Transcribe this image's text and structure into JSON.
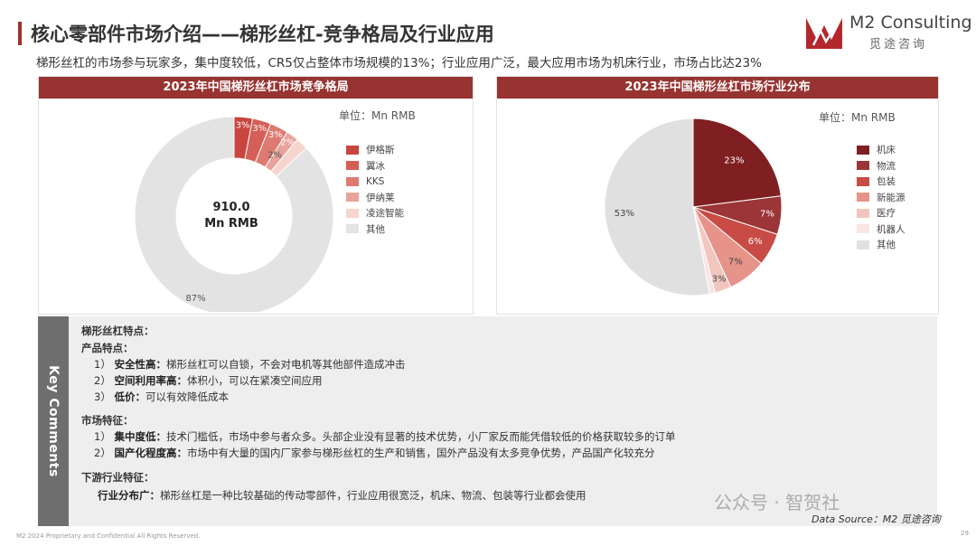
{
  "header": {
    "title": "核心零部件市场介绍——梯形丝杠-竞争格局及行业应用",
    "subtitle": "梯形丝杠的市场参与玩家多，集中度较低，CR5仅占整体市场规模的13%；行业应用广泛，最大应用市场为机床行业，市场占比达23%"
  },
  "logo": {
    "name": "M2 Consulting",
    "sub": "觅途咨询"
  },
  "colors": {
    "accent": "#973330",
    "slices": [
      "#7f1f22",
      "#a13a3a",
      "#c9534c",
      "#e79c92",
      "#f3cdc7",
      "#fbeae7",
      "#e0e0e0"
    ]
  },
  "chart_data": [
    {
      "type": "donut",
      "title": "2023年中国梯形丝杠市场竞争格局",
      "unit_label": "单位：Mn RMB",
      "center_value": "910.0",
      "center_unit": "Mn RMB",
      "series": [
        {
          "name": "伊格斯",
          "value": 3,
          "label": "3%"
        },
        {
          "name": "翼冰",
          "value": 3,
          "label": "3%"
        },
        {
          "name": "KKS",
          "value": 3,
          "label": "3%"
        },
        {
          "name": "伊纳莱",
          "value": 2,
          "label": "2%"
        },
        {
          "name": "凌途智能",
          "value": 2,
          "label": "2%"
        },
        {
          "name": "其他",
          "value": 87,
          "label": "87%"
        }
      ]
    },
    {
      "type": "pie",
      "title": "2023年中国梯形丝杠市场行业分布",
      "unit_label": "单位：Mn RMB",
      "series": [
        {
          "name": "机床",
          "value": 23,
          "label": "23%"
        },
        {
          "name": "物流",
          "value": 7,
          "label": "7%"
        },
        {
          "name": "包装",
          "value": 6,
          "label": "6%"
        },
        {
          "name": "新能源",
          "value": 7,
          "label": "7%"
        },
        {
          "name": "医疗",
          "value": 3,
          "label": "3%"
        },
        {
          "name": "机器人",
          "value": 1,
          "label": "1%"
        },
        {
          "name": "其他",
          "value": 53,
          "label": "53%"
        }
      ]
    }
  ],
  "comments": {
    "tab_label": "Key Comments",
    "heading": "梯形丝杠特点：",
    "product_heading": "产品特点：",
    "product_items": [
      {
        "num": "1）",
        "label": "安全性高：",
        "text": "梯形丝杠可以自锁，不会对电机等其他部件造成冲击"
      },
      {
        "num": "2）",
        "label": "空间利用率高：",
        "text": "体积小，可以在紧凑空间应用"
      },
      {
        "num": "3）",
        "label": "低价：",
        "text": "可以有效降低成本"
      }
    ],
    "market_heading": "市场特征：",
    "market_items": [
      {
        "num": "1）",
        "label": "集中度低：",
        "text": "技术门槛低，市场中参与者众多。头部企业没有显著的技术优势，小厂家反而能凭借较低的价格获取较多的订单"
      },
      {
        "num": "2）",
        "label": "国产化程度高：",
        "text": "市场中有大量的国内厂家参与梯形丝杠的生产和销售，国外产品没有太多竞争优势，产品国产化较充分"
      }
    ],
    "downstream_heading": "下游行业特征：",
    "downstream_item": {
      "label": "行业分布广：",
      "text": "梯形丝杠是一种比较基础的传动零部件，行业应用很宽泛，机床、物流、包装等行业都会使用"
    }
  },
  "footer": {
    "copyright": "M2 2024 Proprietary and Confidential All Rights Reserved.",
    "source": "Data Source：M2 觅途咨询",
    "page": "29",
    "watermark": "公众号 · 智贺社"
  }
}
